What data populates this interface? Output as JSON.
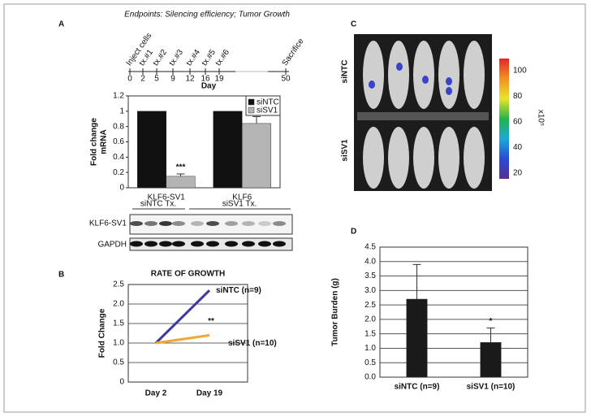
{
  "panel_labels": [
    "A",
    "B",
    "C",
    "D"
  ],
  "timeline": {
    "title": "Endpoints: Silencing efficiency; Tumor Growth",
    "events": [
      "Inject cells",
      "tx.#1",
      "tx.#2",
      "tx.#3",
      "tx.#4",
      "tx.#5",
      "tx.#6",
      "Sacrifice"
    ],
    "days": [
      "0",
      "2",
      "5",
      "9",
      "12",
      "16",
      "19",
      "50"
    ],
    "x_label": "Day"
  },
  "blot": {
    "groups": [
      "siNTC Tx.",
      "siSV1 Tx."
    ],
    "rows": [
      "KLF6-SV1",
      "GAPDH"
    ]
  },
  "imaging": {
    "rows": [
      "siNTC",
      "siSV1"
    ],
    "colorbar_ticks": [
      "20",
      "40",
      "60",
      "80",
      "100"
    ],
    "colorbar_unit": "x10⁵"
  },
  "chart_data": [
    {
      "type": "bar",
      "y_label": [
        "Fold change",
        "mRNA"
      ],
      "categories": [
        "KLF6-SV1",
        "KLF6"
      ],
      "series": [
        {
          "name": "siNTC",
          "color": "#111111",
          "values": [
            1,
            1
          ]
        },
        {
          "name": "siSV1",
          "color": "#b4b4b4",
          "values": [
            0.15,
            0.84
          ],
          "errors": [
            0.03,
            0.09
          ]
        }
      ],
      "annotation": "***",
      "ylim": [
        0,
        1.2
      ],
      "yticks": [
        0,
        0.2,
        0.4,
        0.6,
        0.8,
        1,
        1.2
      ],
      "grid": false,
      "legend": "upper right"
    },
    {
      "type": "line",
      "title": "RATE OF  GROWTH",
      "y_label": "Fold Change",
      "categories": [
        "Day 2",
        "Day 19"
      ],
      "series": [
        {
          "name": "siNTC (n=9)",
          "color": "#3b3a9e",
          "values": [
            1,
            2.35
          ]
        },
        {
          "name": "siSV1 (n=10)",
          "color": "#f0a830",
          "values": [
            1,
            1.2
          ]
        }
      ],
      "annotation": "**",
      "ylim": [
        0,
        2.5
      ],
      "yticks": [
        0,
        0.5,
        {
          "value": 1,
          "label": "1.0"
        },
        1.5,
        {
          "value": 2,
          "label": "2.0"
        },
        2.5
      ],
      "grid": true
    },
    {
      "type": "bar",
      "y_label": "Tumor Burden (g)",
      "categories": [
        "siNTC (n=9)",
        "siSV1 (n=10)"
      ],
      "series": [
        {
          "color": "#1a1a1a",
          "values": [
            2.7,
            1.2
          ],
          "errors": [
            1.2,
            0.5
          ]
        }
      ],
      "annotation": "*",
      "ylim": [
        0,
        4.5
      ],
      "yticks": [
        {
          "value": 0,
          "label": "0.0"
        },
        0.5,
        {
          "value": 1,
          "label": "1.0"
        },
        1.5,
        {
          "value": 2,
          "label": "2.0"
        },
        2.5,
        {
          "value": 3,
          "label": "3.0"
        },
        3.5,
        {
          "value": 4,
          "label": "4.0"
        },
        4.5
      ],
      "grid": true
    }
  ]
}
